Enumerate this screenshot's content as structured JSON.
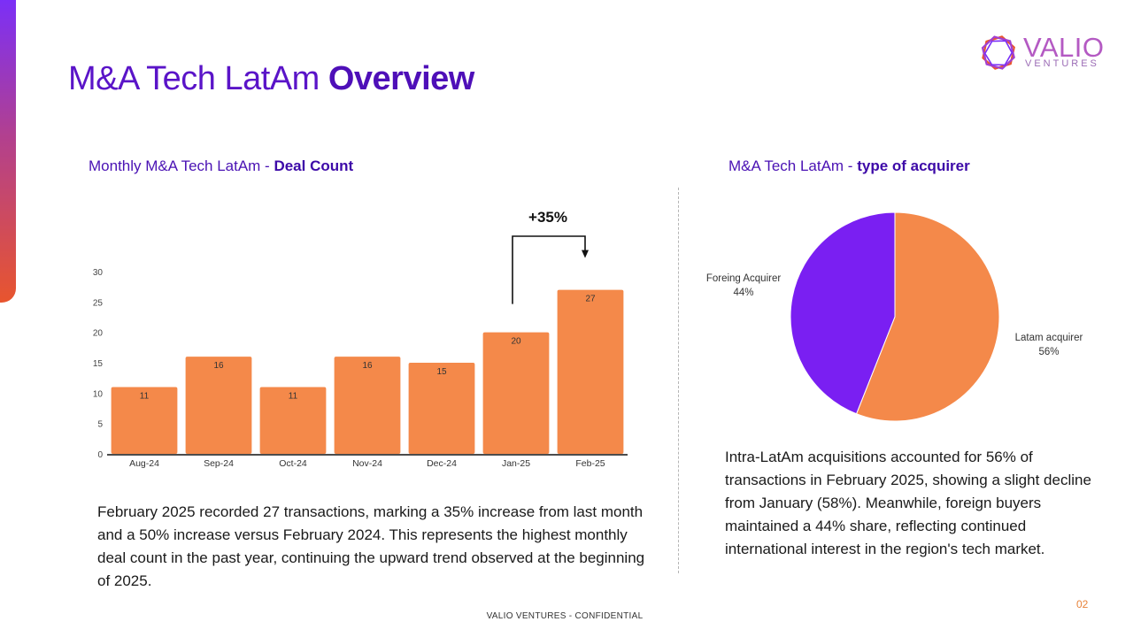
{
  "slide": {
    "title_light": "M&A Tech LatAm",
    "title_bold": "Overview",
    "logo": {
      "word": "VALIO",
      "sub": "VENTURES"
    },
    "footer": "VALIO VENTURES - CONFIDENTIAL",
    "page_number": "02"
  },
  "left": {
    "subtitle_light": "Monthly M&A Tech LatAm - ",
    "subtitle_bold": "Deal Count",
    "annotation": "+35%",
    "paragraph": "February 2025 recorded 27 transactions, marking a 35% increase from last month and a 50% increase versus February 2024. This represents the highest monthly deal count in the past year, continuing the upward trend observed at the beginning of 2025."
  },
  "right": {
    "subtitle_light": "M&A Tech LatAm - ",
    "subtitle_bold": "type of acquirer",
    "paragraph": "Intra-LatAm acquisitions accounted for 56% of transactions in February 2025, showing a slight decline from January (58%). Meanwhile, foreign buyers maintained a 44% share, reflecting continued international interest in the region's tech market."
  },
  "colors": {
    "bar": "#f4894a",
    "foreign": "#7a1ff2",
    "latam": "#f4894a",
    "title": "#5a14c8"
  },
  "chart_data": [
    {
      "type": "bar",
      "categories": [
        "Aug-24",
        "Sep-24",
        "Oct-24",
        "Nov-24",
        "Dec-24",
        "Jan-25",
        "Feb-25"
      ],
      "values": [
        11,
        16,
        11,
        16,
        15,
        20,
        27
      ],
      "title": "Monthly M&A Tech LatAm - Deal Count",
      "xlabel": "",
      "ylabel": "",
      "ylim": [
        0,
        30
      ],
      "yticks": [
        0,
        5,
        10,
        15,
        20,
        25,
        30
      ],
      "data_labels": true,
      "grid": false,
      "annotation": {
        "text": "+35%",
        "from": "Jan-25",
        "to": "Feb-25"
      }
    },
    {
      "type": "pie",
      "title": "M&A Tech LatAm - type of acquirer",
      "slices": [
        {
          "label": "Latam acquirer",
          "value": 56,
          "display": "56%"
        },
        {
          "label": "Foreing Acquirer",
          "value": 44,
          "display": "44%"
        }
      ]
    }
  ]
}
